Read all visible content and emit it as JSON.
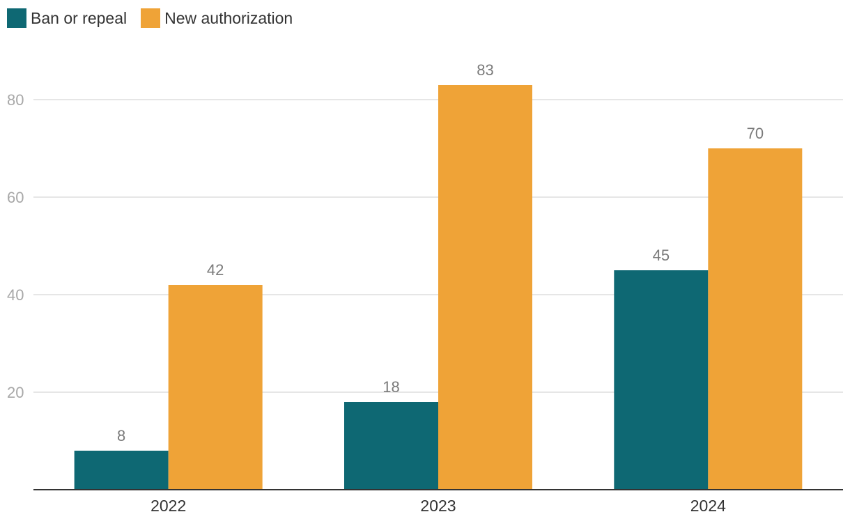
{
  "chart_data": {
    "type": "bar",
    "categories": [
      "2022",
      "2023",
      "2024"
    ],
    "series": [
      {
        "name": "Ban or repeal",
        "values": [
          8,
          18,
          45
        ],
        "color": "#0e6873"
      },
      {
        "name": "New authorization",
        "values": [
          42,
          83,
          70
        ],
        "color": "#efa337"
      }
    ],
    "yticks": [
      20,
      40,
      60,
      80
    ],
    "ylim": [
      0,
      80
    ],
    "grid": true,
    "legend_position": "top-left",
    "data_labels": true
  }
}
